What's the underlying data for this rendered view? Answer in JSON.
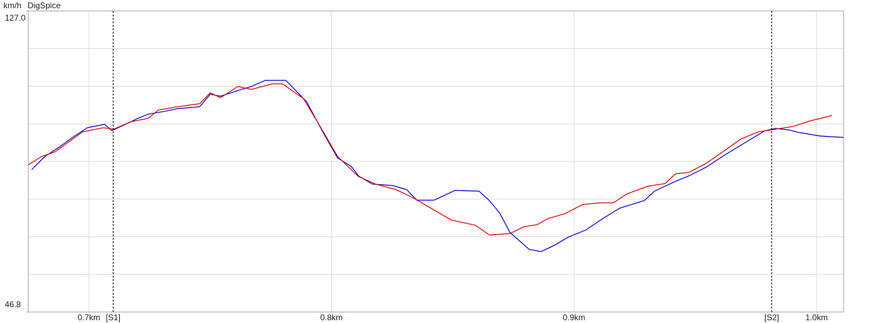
{
  "chart_data": {
    "type": "line",
    "title": "DigSpice",
    "y_label": "km/h",
    "xlim": [
      0.675,
      1.0111
    ],
    "xticks": [
      {
        "value": 0.7,
        "label": "0.7km"
      },
      {
        "value": 0.8,
        "label": "0.8km"
      },
      {
        "value": 0.9,
        "label": "0.9km"
      },
      {
        "value": 1.0,
        "label": "1.0km"
      }
    ],
    "ylim": [
      46.8,
      127.0
    ],
    "yticks": [
      {
        "value": 127.0,
        "label": "127.0"
      },
      46.8
    ],
    "grid": true,
    "annotations": [
      {
        "x": 0.71,
        "label": "[S1]"
      },
      {
        "x": 0.9815,
        "label": "[S2]"
      }
    ],
    "series": [
      {
        "color": "#0000dd",
        "x": [
          0.6764,
          0.6818,
          0.6875,
          0.6932,
          0.6994,
          0.7065,
          0.7094,
          0.7145,
          0.7202,
          0.7244,
          0.7315,
          0.7366,
          0.7457,
          0.75,
          0.7543,
          0.7614,
          0.767,
          0.7727,
          0.7812,
          0.7898,
          0.7969,
          0.8026,
          0.8082,
          0.8111,
          0.8168,
          0.8253,
          0.831,
          0.8352,
          0.8423,
          0.8509,
          0.8608,
          0.8651,
          0.8693,
          0.8736,
          0.8815,
          0.8864,
          0.892,
          0.8977,
          0.9048,
          0.9119,
          0.919,
          0.929,
          0.9332,
          0.9418,
          0.9474,
          0.9545,
          0.9616,
          0.9702,
          0.9787,
          0.983,
          0.9886,
          0.9929,
          1.0014,
          1.0111
        ],
        "values": [
          84.7,
          88.2,
          90.6,
          93.3,
          95.9,
          96.8,
          95.1,
          96.6,
          98.4,
          99.5,
          100.3,
          101.0,
          101.5,
          104.8,
          104.3,
          105.8,
          106.9,
          108.5,
          108.5,
          102.8,
          94.2,
          87.8,
          85.6,
          83.1,
          80.9,
          80.5,
          79.4,
          76.6,
          76.6,
          79.2,
          79.0,
          76.5,
          73.2,
          68.0,
          63.5,
          62.9,
          64.6,
          66.8,
          68.6,
          71.7,
          74.5,
          76.5,
          79.0,
          81.6,
          83.1,
          85.4,
          88.4,
          91.8,
          95.1,
          95.7,
          95.3,
          94.6,
          93.7,
          93.3
        ]
      },
      {
        "color": "#dd0000",
        "x": [
          0.675,
          0.6804,
          0.6861,
          0.6918,
          0.6974,
          0.706,
          0.7102,
          0.7173,
          0.7244,
          0.7287,
          0.7366,
          0.7457,
          0.75,
          0.7543,
          0.7614,
          0.767,
          0.7756,
          0.7798,
          0.7884,
          0.7955,
          0.8026,
          0.8111,
          0.8182,
          0.8267,
          0.8338,
          0.8409,
          0.8494,
          0.8594,
          0.8651,
          0.8736,
          0.8793,
          0.8849,
          0.8892,
          0.8963,
          0.9034,
          0.9105,
          0.9162,
          0.9219,
          0.9304,
          0.9375,
          0.9418,
          0.9474,
          0.9545,
          0.9616,
          0.9688,
          0.9759,
          0.983,
          0.9901,
          0.9972,
          1.0043,
          1.0063
        ],
        "values": [
          86.0,
          88.2,
          89.5,
          92.2,
          94.8,
          95.9,
          95.5,
          97.5,
          98.4,
          100.6,
          101.5,
          102.3,
          105.2,
          103.9,
          106.9,
          106.1,
          107.6,
          107.6,
          103.7,
          96.1,
          88.2,
          82.9,
          80.9,
          79.4,
          77.2,
          74.5,
          71.3,
          69.9,
          67.3,
          67.7,
          69.5,
          70.1,
          71.7,
          73.0,
          75.4,
          75.9,
          75.9,
          78.3,
          80.3,
          81.0,
          83.6,
          84.0,
          86.4,
          89.6,
          92.9,
          94.8,
          95.5,
          96.2,
          97.7,
          98.8,
          99.2
        ]
      }
    ]
  }
}
